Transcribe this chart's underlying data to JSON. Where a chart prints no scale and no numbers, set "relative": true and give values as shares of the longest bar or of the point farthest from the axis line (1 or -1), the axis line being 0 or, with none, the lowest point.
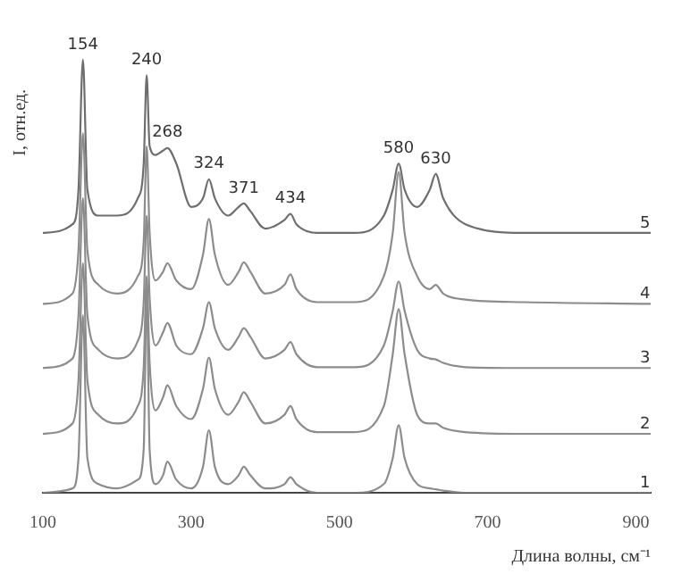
{
  "chart_data": {
    "type": "line",
    "relative": true,
    "xlabel": "Длина волны, см⁻¹",
    "ylabel": "I, отн.ед.",
    "x": [
      100,
      140,
      148,
      154,
      160,
      175,
      200,
      228,
      236,
      240,
      244,
      252,
      262,
      268,
      280,
      300,
      316,
      324,
      332,
      350,
      364,
      371,
      380,
      400,
      426,
      434,
      442,
      470,
      520,
      560,
      572,
      580,
      588,
      605,
      622,
      630,
      640,
      670,
      750,
      920
    ],
    "xlim": [
      100,
      920
    ],
    "xticks": [
      100,
      300,
      500,
      700,
      900
    ],
    "grid": false,
    "legend": false,
    "marker": "none",
    "line_style": "solid",
    "series": [
      {
        "name": "1",
        "color": "#8c8c8c",
        "values": [
          0,
          0.01,
          0.08,
          0.41,
          0.08,
          0.02,
          0.01,
          0.03,
          0.1,
          0.46,
          0.1,
          0.02,
          0.04,
          0.072,
          0.03,
          0.01,
          0.06,
          0.144,
          0.06,
          0.02,
          0.04,
          0.06,
          0.04,
          0.01,
          0.02,
          0.036,
          0.02,
          0,
          0,
          0.02,
          0.08,
          0.156,
          0.08,
          0.02,
          0.01,
          0.008,
          0.005,
          0,
          0,
          0
        ]
      },
      {
        "name": "2",
        "color": "#8c8c8c",
        "values": [
          0.136,
          0.16,
          0.26,
          0.53,
          0.26,
          0.18,
          0.16,
          0.2,
          0.29,
          0.5,
          0.3,
          0.19,
          0.22,
          0.248,
          0.2,
          0.17,
          0.24,
          0.312,
          0.24,
          0.18,
          0.21,
          0.232,
          0.21,
          0.16,
          0.18,
          0.2,
          0.17,
          0.14,
          0.14,
          0.2,
          0.32,
          0.424,
          0.32,
          0.18,
          0.16,
          0.16,
          0.15,
          0.14,
          0.136,
          0.136
        ]
      },
      {
        "name": "3",
        "color": "#8c8c8c",
        "values": [
          0.288,
          0.31,
          0.41,
          0.68,
          0.41,
          0.33,
          0.31,
          0.35,
          0.44,
          0.64,
          0.45,
          0.34,
          0.37,
          0.392,
          0.34,
          0.32,
          0.38,
          0.44,
          0.38,
          0.33,
          0.36,
          0.38,
          0.36,
          0.31,
          0.33,
          0.348,
          0.32,
          0.29,
          0.29,
          0.34,
          0.42,
          0.488,
          0.42,
          0.33,
          0.31,
          0.308,
          0.3,
          0.29,
          0.288,
          0.288
        ]
      },
      {
        "name": "4",
        "color": "#8c8c8c",
        "values": [
          0.436,
          0.46,
          0.56,
          0.83,
          0.56,
          0.48,
          0.46,
          0.5,
          0.58,
          0.8,
          0.6,
          0.49,
          0.51,
          0.53,
          0.49,
          0.47,
          0.55,
          0.632,
          0.55,
          0.48,
          0.51,
          0.532,
          0.51,
          0.46,
          0.48,
          0.504,
          0.47,
          0.44,
          0.44,
          0.5,
          0.6,
          0.74,
          0.6,
          0.5,
          0.47,
          0.48,
          0.46,
          0.446,
          0.44,
          0.436
        ]
      },
      {
        "name": "5",
        "color": "#6e6e6e",
        "values": [
          0.6,
          0.62,
          0.7,
          1.0,
          0.7,
          0.64,
          0.64,
          0.68,
          0.76,
          0.964,
          0.8,
          0.78,
          0.79,
          0.796,
          0.76,
          0.66,
          0.68,
          0.724,
          0.68,
          0.64,
          0.66,
          0.668,
          0.65,
          0.61,
          0.63,
          0.644,
          0.62,
          0.6,
          0.6,
          0.64,
          0.7,
          0.76,
          0.7,
          0.66,
          0.7,
          0.736,
          0.68,
          0.62,
          0.6,
          0.6
        ]
      }
    ],
    "annotations": [
      {
        "text": "154",
        "x": 154,
        "y": 1.0
      },
      {
        "text": "240",
        "x": 240,
        "y": 0.964
      },
      {
        "text": "268",
        "x": 268,
        "y": 0.796
      },
      {
        "text": "324",
        "x": 324,
        "y": 0.724
      },
      {
        "text": "371",
        "x": 371,
        "y": 0.668
      },
      {
        "text": "434",
        "x": 434,
        "y": 0.644
      },
      {
        "text": "580",
        "x": 580,
        "y": 0.76
      },
      {
        "text": "630",
        "x": 630,
        "y": 0.736
      }
    ]
  }
}
